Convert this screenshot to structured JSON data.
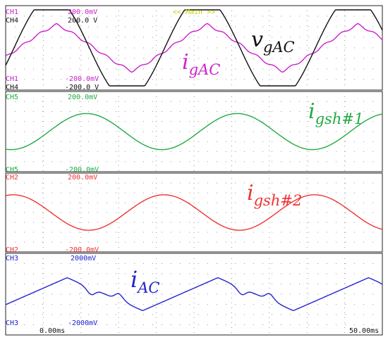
{
  "chart_data": {
    "type": "line",
    "header": "<< Main >>",
    "time": {
      "start_label": "0.00ms",
      "end_label": "50.00ms",
      "range_ms": [
        0,
        50
      ]
    },
    "grid": true,
    "panels": [
      {
        "id": "p1",
        "channels": [
          {
            "name": "CH1",
            "color": "#cc22cc",
            "top_label": "200.0mV",
            "bottom_label": "-200.0mV",
            "label": {
              "base": "i",
              "sub": "gAC"
            },
            "waveform": "rounded-triangle",
            "amplitude_frac": 0.55,
            "cycles": 2.5
          },
          {
            "name": "CH4",
            "color": "#111111",
            "top_label": "200.0 V",
            "bottom_label": "-200.0 V",
            "label": {
              "base": "v",
              "sub": "gAC"
            },
            "waveform": "clipped-sine",
            "amplitude_frac": 0.9,
            "cycles": 2.5
          }
        ]
      },
      {
        "id": "p2",
        "channels": [
          {
            "name": "CH5",
            "color": "#22aa44",
            "top_label": "200.0mV",
            "bottom_label": "-200.0mV",
            "label": {
              "base": "i",
              "sub": "gsh#1"
            },
            "waveform": "sine",
            "amplitude_frac": 0.45,
            "cycles": 2.5
          }
        ]
      },
      {
        "id": "p3",
        "channels": [
          {
            "name": "CH2",
            "color": "#ee3333",
            "top_label": "200.0mV",
            "bottom_label": "-200.0mV",
            "label": {
              "base": "i",
              "sub": "gsh#2"
            },
            "waveform": "sine",
            "amplitude_frac": 0.45,
            "cycles": 2.5
          }
        ]
      },
      {
        "id": "p4",
        "channels": [
          {
            "name": "CH3",
            "color": "#2222cc",
            "top_label": "2000mV",
            "bottom_label": "-2000mV",
            "label": {
              "base": "i",
              "sub": "AC"
            },
            "waveform": "notched-triangle",
            "amplitude_frac": 0.45,
            "cycles": 2.5
          }
        ]
      }
    ]
  }
}
